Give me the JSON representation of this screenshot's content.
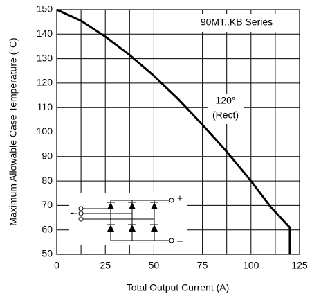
{
  "chart_data": {
    "type": "line",
    "x_label": "Total Output Current (A)",
    "y_label": "Maximum Allowable Case Temperature (°C)",
    "annotations": [
      "90MT..KB Series",
      "120°",
      "(Rect)"
    ],
    "circuit_labels": [
      "+",
      "~",
      "–"
    ],
    "x": [
      0,
      12.5,
      25,
      37.5,
      50,
      62.5,
      75,
      87.5,
      100,
      110,
      120,
      120
    ],
    "series": [
      {
        "color": "#000000",
        "values": [
          150,
          145.5,
          139,
          131.5,
          123,
          113.5,
          103,
          92,
          80,
          69.5,
          61,
          50
        ]
      }
    ],
    "xlim": [
      0,
      125
    ],
    "ylim": [
      50,
      150
    ],
    "xticks": [
      0,
      25,
      50,
      75,
      100,
      125
    ],
    "yticks": [
      50,
      60,
      70,
      80,
      90,
      100,
      110,
      120,
      130,
      140,
      150
    ],
    "grid": true
  }
}
